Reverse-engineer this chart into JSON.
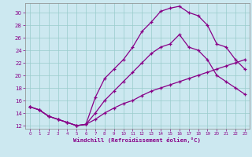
{
  "xlabel": "Windchill (Refroidissement éolien,°C)",
  "bg_color": "#cce8f0",
  "line_color": "#880088",
  "grid_color": "#99cccc",
  "xlim": [
    -0.5,
    23.5
  ],
  "ylim": [
    11.5,
    31.5
  ],
  "yticks": [
    12,
    14,
    16,
    18,
    20,
    22,
    24,
    26,
    28,
    30
  ],
  "xticks": [
    0,
    1,
    2,
    3,
    4,
    5,
    6,
    7,
    8,
    9,
    10,
    11,
    12,
    13,
    14,
    15,
    16,
    17,
    18,
    19,
    20,
    21,
    22,
    23
  ],
  "curve1_x": [
    0,
    1,
    2,
    3,
    4,
    5,
    6,
    7,
    8,
    9,
    10,
    11,
    12,
    13,
    14,
    15,
    16,
    17,
    18,
    19,
    20,
    21,
    22,
    23
  ],
  "curve1_y": [
    15.0,
    14.5,
    13.5,
    13.0,
    12.5,
    12.0,
    12.2,
    16.5,
    19.5,
    21.0,
    22.5,
    24.5,
    27.0,
    28.5,
    30.2,
    30.7,
    31.0,
    30.0,
    29.5,
    28.0,
    25.0,
    24.5,
    22.5,
    21.0
  ],
  "curve2_x": [
    0,
    1,
    2,
    3,
    4,
    5,
    6,
    7,
    8,
    9,
    10,
    11,
    12,
    13,
    14,
    15,
    16,
    17,
    18,
    19,
    20,
    21,
    22,
    23
  ],
  "curve2_y": [
    15.0,
    14.5,
    13.5,
    13.0,
    12.5,
    12.0,
    12.2,
    14.0,
    16.0,
    17.5,
    19.0,
    20.5,
    22.0,
    23.5,
    24.5,
    25.0,
    26.5,
    24.5,
    24.0,
    22.5,
    20.0,
    19.0,
    18.0,
    17.0
  ],
  "curve3_x": [
    0,
    1,
    2,
    3,
    4,
    5,
    6,
    7,
    8,
    9,
    10,
    11,
    12,
    13,
    14,
    15,
    16,
    17,
    18,
    19,
    20,
    21,
    22,
    23
  ],
  "curve3_y": [
    15.0,
    14.5,
    13.5,
    13.0,
    12.5,
    12.0,
    12.2,
    13.0,
    14.0,
    14.8,
    15.5,
    16.0,
    16.8,
    17.5,
    18.0,
    18.5,
    19.0,
    19.5,
    20.0,
    20.5,
    21.0,
    21.5,
    22.0,
    22.5
  ]
}
